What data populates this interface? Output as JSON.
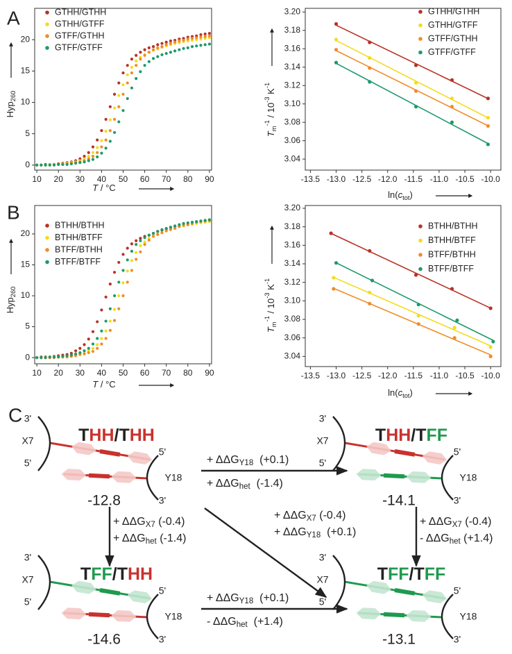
{
  "panel_labels": [
    "A",
    "B",
    "C"
  ],
  "chart_data": [
    {
      "type": "scatter",
      "legend": "upper left",
      "grid": false,
      "xlabel": [
        {
          "text": "T",
          "style": "i"
        },
        {
          "text": " / °C"
        }
      ],
      "ylabel": [
        {
          "text": "Hyp"
        },
        {
          "text": "260",
          "style": "sub"
        }
      ],
      "xlim": [
        9,
        91
      ],
      "ylim": [
        -0.8,
        25
      ],
      "xticks": [
        10,
        20,
        30,
        40,
        50,
        60,
        70,
        80,
        90
      ],
      "yticks": [
        0,
        5,
        10,
        15,
        20
      ],
      "x": [
        10,
        12,
        14,
        16,
        18,
        20,
        22,
        24,
        26,
        28,
        30,
        32,
        34,
        36,
        38,
        40,
        42,
        44,
        46,
        48,
        50,
        52,
        54,
        56,
        58,
        60,
        62,
        64,
        66,
        68,
        70,
        72,
        74,
        76,
        78,
        80,
        82,
        84,
        86,
        88,
        90
      ],
      "series": [
        {
          "name": "GTHH/GTHH",
          "color": "#b83226",
          "values": [
            0,
            0,
            0.1,
            0.1,
            0.1,
            0.2,
            0.3,
            0.4,
            0.5,
            0.7,
            1.0,
            1.4,
            2.0,
            2.9,
            4.0,
            5.5,
            7.3,
            9.3,
            11.3,
            13.1,
            14.7,
            15.9,
            16.9,
            17.5,
            18.0,
            18.4,
            18.7,
            18.9,
            19.2,
            19.4,
            19.6,
            19.8,
            19.9,
            20.1,
            20.2,
            20.4,
            20.5,
            20.6,
            20.8,
            20.9,
            21.0
          ]
        },
        {
          "name": "GTHH/GTFF",
          "color": "#f2dc1f",
          "values": [
            0,
            0,
            0,
            0.1,
            0.1,
            0.1,
            0.2,
            0.3,
            0.4,
            0.5,
            0.7,
            1.0,
            1.4,
            2.0,
            2.8,
            3.9,
            5.4,
            7.2,
            9.1,
            11.1,
            12.8,
            14.4,
            15.6,
            16.6,
            17.2,
            17.6,
            18.0,
            18.3,
            18.5,
            18.8,
            19.0,
            19.2,
            19.4,
            19.5,
            19.7,
            19.8,
            19.9,
            20.0,
            20.1,
            20.2,
            20.3
          ]
        },
        {
          "name": "GTFF/GTHH",
          "color": "#f08c28",
          "values": [
            0,
            0,
            0,
            0,
            0.1,
            0.1,
            0.1,
            0.2,
            0.3,
            0.4,
            0.5,
            0.7,
            1.0,
            1.4,
            2.0,
            2.9,
            4.0,
            5.5,
            7.3,
            9.3,
            11.3,
            13.1,
            14.7,
            15.9,
            16.9,
            17.5,
            18.0,
            18.4,
            18.7,
            18.9,
            19.2,
            19.4,
            19.6,
            19.8,
            19.9,
            20.1,
            20.2,
            20.3,
            20.4,
            20.5,
            20.6
          ]
        },
        {
          "name": "GTFF/GTFF",
          "color": "#1e9a6b",
          "values": [
            0,
            0,
            0,
            0,
            0,
            0.1,
            0.1,
            0.1,
            0.2,
            0.3,
            0.4,
            0.5,
            0.7,
            0.9,
            1.3,
            1.9,
            2.7,
            3.8,
            5.2,
            6.9,
            8.7,
            10.6,
            12.3,
            13.8,
            14.9,
            15.9,
            16.5,
            17.0,
            17.3,
            17.6,
            17.8,
            18.0,
            18.2,
            18.4,
            18.6,
            18.7,
            18.9,
            19.0,
            19.1,
            19.2,
            19.3
          ]
        }
      ]
    },
    {
      "type": "scatter",
      "fit": true,
      "legend": "upper right",
      "grid": false,
      "xlabel": [
        {
          "text": "ln("
        },
        {
          "text": "c",
          "style": "i"
        },
        {
          "text": "tot",
          "style": "sub"
        },
        {
          "text": ")"
        }
      ],
      "ylabel": [
        {
          "text": "T",
          "style": "i"
        },
        {
          "text": "m",
          "style": "sub"
        },
        {
          "text": "-1",
          "style": "sup"
        },
        {
          "text": " / 10"
        },
        {
          "text": "-3",
          "style": "sup"
        },
        {
          "text": " K"
        },
        {
          "text": "-1",
          "style": "sup"
        }
      ],
      "xlim": [
        -13.6,
        -9.8
      ],
      "ylim": [
        3.028,
        3.204
      ],
      "xticks": [
        -13.5,
        {
          "value": -13,
          "label": "-13.0"
        },
        -12.5,
        {
          "value": -12,
          "label": "-12.0"
        },
        -11.5,
        {
          "value": -11,
          "label": "-11.0"
        },
        -10.5,
        {
          "value": -10,
          "label": "-10.0"
        }
      ],
      "yticks": [
        3.04,
        3.06,
        3.08,
        {
          "value": 3.1,
          "label": "3.10"
        },
        3.12,
        3.14,
        3.16,
        3.18,
        {
          "value": 3.2,
          "label": "3.20"
        }
      ],
      "series": [
        {
          "name": "GTHH/GTHH",
          "color": "#b83226",
          "x": [
            -13.0,
            -12.35,
            -11.45,
            -10.75,
            -10.05
          ],
          "values": [
            3.187,
            3.167,
            3.142,
            3.126,
            3.106
          ]
        },
        {
          "name": "GTHH/GTFF",
          "color": "#f2dc1f",
          "x": [
            -13.0,
            -12.35,
            -11.45,
            -10.75,
            -10.05
          ],
          "values": [
            3.17,
            3.15,
            3.123,
            3.106,
            3.085
          ]
        },
        {
          "name": "GTFF/GTHH",
          "color": "#f08c28",
          "x": [
            -13.0,
            -12.35,
            -11.45,
            -10.75,
            -10.05
          ],
          "values": [
            3.159,
            3.139,
            3.114,
            3.097,
            3.076
          ]
        },
        {
          "name": "GTFF/GTFF",
          "color": "#1e9a6b",
          "x": [
            -13.0,
            -12.35,
            -11.45,
            -10.75,
            -10.05
          ],
          "values": [
            3.145,
            3.124,
            3.097,
            3.08,
            3.056
          ]
        }
      ]
    },
    {
      "type": "scatter",
      "legend": "upper left",
      "grid": false,
      "xlabel": [
        {
          "text": "T",
          "style": "i"
        },
        {
          "text": " / °C"
        }
      ],
      "ylabel": [
        {
          "text": "Hyp"
        },
        {
          "text": "260",
          "style": "sub"
        }
      ],
      "xlim": [
        9,
        91
      ],
      "ylim": [
        -1,
        24.6
      ],
      "xticks": [
        10,
        20,
        30,
        40,
        50,
        60,
        70,
        80,
        90
      ],
      "yticks": [
        0,
        5,
        10,
        15,
        20
      ],
      "x": [
        10,
        12,
        14,
        16,
        18,
        20,
        22,
        24,
        26,
        28,
        30,
        32,
        34,
        36,
        38,
        40,
        42,
        44,
        46,
        48,
        50,
        52,
        54,
        56,
        58,
        60,
        62,
        64,
        66,
        68,
        70,
        72,
        74,
        76,
        78,
        80,
        82,
        84,
        86,
        88,
        90
      ],
      "series": [
        {
          "name": "BTHH/BTHH",
          "color": "#b83226",
          "values": [
            0,
            0.1,
            0.1,
            0.1,
            0.2,
            0.3,
            0.4,
            0.5,
            0.7,
            1.1,
            1.5,
            2.1,
            3.0,
            4.2,
            5.8,
            7.7,
            9.8,
            11.9,
            13.8,
            15.4,
            16.7,
            17.7,
            18.4,
            18.9,
            19.3,
            19.6,
            19.8,
            20.1,
            20.4,
            20.6,
            20.8,
            20.9,
            21.1,
            21.2,
            21.4,
            21.5,
            21.6,
            21.8,
            21.9,
            22.0,
            22.1
          ]
        },
        {
          "name": "BTHH/BTFF",
          "color": "#f2dc1f",
          "values": [
            0,
            0,
            0,
            0,
            0.1,
            0.1,
            0.1,
            0.2,
            0.3,
            0.4,
            0.5,
            0.7,
            1.1,
            1.5,
            2.1,
            3.1,
            4.3,
            5.9,
            7.8,
            10.0,
            12.1,
            14.0,
            15.7,
            17.0,
            18.1,
            18.7,
            19.3,
            19.7,
            20.0,
            20.2,
            20.5,
            20.8,
            21.0,
            21.2,
            21.3,
            21.5,
            21.6,
            21.7,
            21.8,
            21.9,
            22.0
          ]
        },
        {
          "name": "BTFF/BTHH",
          "color": "#f08c28",
          "values": [
            0,
            0,
            0,
            0,
            0,
            0.1,
            0.1,
            0.1,
            0.2,
            0.3,
            0.5,
            0.6,
            0.8,
            1.0,
            1.5,
            2.2,
            3.1,
            4.4,
            6.0,
            7.9,
            10.0,
            12.2,
            14.1,
            15.9,
            17.1,
            18.3,
            19.0,
            19.6,
            19.9,
            20.2,
            20.5,
            20.7,
            20.9,
            21.2,
            21.4,
            21.5,
            21.7,
            21.9,
            22.0,
            22.1,
            22.2
          ]
        },
        {
          "name": "BTFF/BTFF",
          "color": "#1e9a6b",
          "values": [
            0,
            0,
            0,
            0.1,
            0.1,
            0.1,
            0.2,
            0.3,
            0.4,
            0.6,
            0.8,
            1.1,
            1.5,
            2.2,
            3.1,
            4.3,
            5.9,
            7.9,
            10.0,
            12.2,
            14.1,
            15.8,
            17.2,
            18.3,
            18.9,
            19.4,
            19.8,
            20.1,
            20.4,
            20.7,
            20.9,
            21.1,
            21.3,
            21.5,
            21.7,
            21.8,
            21.9,
            22.0,
            22.1,
            22.2,
            22.3
          ]
        }
      ]
    },
    {
      "type": "scatter",
      "fit": true,
      "legend": "upper right",
      "grid": false,
      "xlabel": [
        {
          "text": "ln("
        },
        {
          "text": "c",
          "style": "i"
        },
        {
          "text": "tot",
          "style": "sub"
        },
        {
          "text": ")"
        }
      ],
      "ylabel": [
        {
          "text": "T",
          "style": "i"
        },
        {
          "text": "m",
          "style": "sub"
        },
        {
          "text": "-1",
          "style": "sup"
        },
        {
          "text": " / 10"
        },
        {
          "text": "-3",
          "style": "sup"
        },
        {
          "text": " K"
        },
        {
          "text": "-1",
          "style": "sup"
        }
      ],
      "xlim": [
        -13.6,
        -9.8
      ],
      "ylim": [
        3.029,
        3.203
      ],
      "xticks": [
        -13.5,
        {
          "value": -13,
          "label": "-13.0"
        },
        -12.5,
        {
          "value": -12,
          "label": "-12.0"
        },
        -11.5,
        {
          "value": -11,
          "label": "-11.0"
        },
        -10.5,
        {
          "value": -10,
          "label": "-10.0"
        }
      ],
      "yticks": [
        3.04,
        3.06,
        3.08,
        {
          "value": 3.1,
          "label": "3.10"
        },
        3.12,
        3.14,
        3.16,
        3.18,
        {
          "value": 3.2,
          "label": "3.20"
        }
      ],
      "series": [
        {
          "name": "BTHH/BTHH",
          "color": "#b83226",
          "x": [
            -13.1,
            -12.35,
            -11.45,
            -10.75,
            -10.0
          ],
          "values": [
            3.173,
            3.154,
            3.128,
            3.113,
            3.092
          ]
        },
        {
          "name": "BTHH/BTFF",
          "color": "#f2dc1f",
          "x": [
            -13.05,
            -12.35,
            -11.4,
            -10.7,
            -10.0
          ],
          "values": [
            3.125,
            3.109,
            3.084,
            3.071,
            3.05
          ]
        },
        {
          "name": "BTFF/BTHH",
          "color": "#f08c28",
          "x": [
            -13.05,
            -12.35,
            -11.4,
            -10.7,
            -10.0
          ],
          "values": [
            3.113,
            3.097,
            3.075,
            3.06,
            3.04
          ]
        },
        {
          "name": "BTFF/BTFF",
          "color": "#1e9a6b",
          "x": [
            -13.0,
            -12.3,
            -11.4,
            -10.65,
            -9.95
          ],
          "values": [
            3.141,
            3.122,
            3.096,
            3.079,
            3.056
          ]
        }
      ]
    }
  ],
  "diagram": {
    "strand_labels": {
      "three_prime": "3'",
      "five_prime": "5'",
      "left": "X7",
      "right": "Y18"
    },
    "strand_colors": {
      "red": "#c8322e",
      "green": "#1f9a4e",
      "red_ring": "#f4c9c6",
      "green_ring": "#c3e6d0"
    },
    "nodes": [
      {
        "title": [
          {
            "text": "T",
            "color": "#222222"
          },
          {
            "text": "HH",
            "color": "#c8322e"
          },
          {
            "text": "/",
            "color": "#222222"
          },
          {
            "text": "T",
            "color": "#222222"
          },
          {
            "text": "HH",
            "color": "#c8322e"
          }
        ],
        "value": -12.8
      },
      {
        "title": [
          {
            "text": "T",
            "color": "#222222"
          },
          {
            "text": "HH",
            "color": "#c8322e"
          },
          {
            "text": "/",
            "color": "#222222"
          },
          {
            "text": "T",
            "color": "#222222"
          },
          {
            "text": "FF",
            "color": "#1f9a4e"
          }
        ],
        "value": -14.1
      },
      {
        "title": [
          {
            "text": "T",
            "color": "#222222"
          },
          {
            "text": "FF",
            "color": "#1f9a4e"
          },
          {
            "text": "/",
            "color": "#222222"
          },
          {
            "text": "T",
            "color": "#222222"
          },
          {
            "text": "HH",
            "color": "#c8322e"
          }
        ],
        "value": -14.6
      },
      {
        "title": [
          {
            "text": "T",
            "color": "#222222"
          },
          {
            "text": "FF",
            "color": "#1f9a4e"
          },
          {
            "text": "/",
            "color": "#222222"
          },
          {
            "text": "T",
            "color": "#222222"
          },
          {
            "text": "FF",
            "color": "#1f9a4e"
          }
        ],
        "value": -13.1
      }
    ],
    "edges": [
      {
        "lines": [
          [
            {
              "text": "+ ΔΔG"
            },
            {
              "text": "Y18",
              "style": "sub"
            },
            {
              "text": "  (+0.1)"
            }
          ],
          [
            {
              "text": "+ ΔΔG"
            },
            {
              "text": "het",
              "style": "sub"
            },
            {
              "text": "  (-1.4)"
            }
          ]
        ]
      },
      {
        "lines": [
          [
            {
              "text": "+ ΔΔG"
            },
            {
              "text": "X7",
              "style": "sub"
            },
            {
              "text": " (-0.4)"
            }
          ],
          [
            {
              "text": "+ ΔΔG"
            },
            {
              "text": "het",
              "style": "sub"
            },
            {
              "text": " (-1.4)"
            }
          ]
        ]
      },
      {
        "lines": [
          [
            {
              "text": "+ ΔΔG"
            },
            {
              "text": "X7",
              "style": "sub"
            },
            {
              "text": " (-0.4)"
            }
          ],
          [
            {
              "text": "+ ΔΔG"
            },
            {
              "text": "Y18",
              "style": "sub"
            },
            {
              "text": "  (+0.1)"
            }
          ]
        ]
      },
      {
        "lines": [
          [
            {
              "text": "+ ΔΔG"
            },
            {
              "text": "X7",
              "style": "sub"
            },
            {
              "text": " (-0.4)"
            }
          ],
          [
            {
              "text": "- ΔΔG"
            },
            {
              "text": "het",
              "style": "sub"
            },
            {
              "text": " (+1.4)"
            }
          ]
        ]
      },
      {
        "lines": [
          [
            {
              "text": "+ ΔΔG"
            },
            {
              "text": "Y18",
              "style": "sub"
            },
            {
              "text": "  (+0.1)"
            }
          ],
          [
            {
              "text": "- ΔΔG"
            },
            {
              "text": "het",
              "style": "sub"
            },
            {
              "text": "  (+1.4)"
            }
          ]
        ]
      }
    ]
  }
}
